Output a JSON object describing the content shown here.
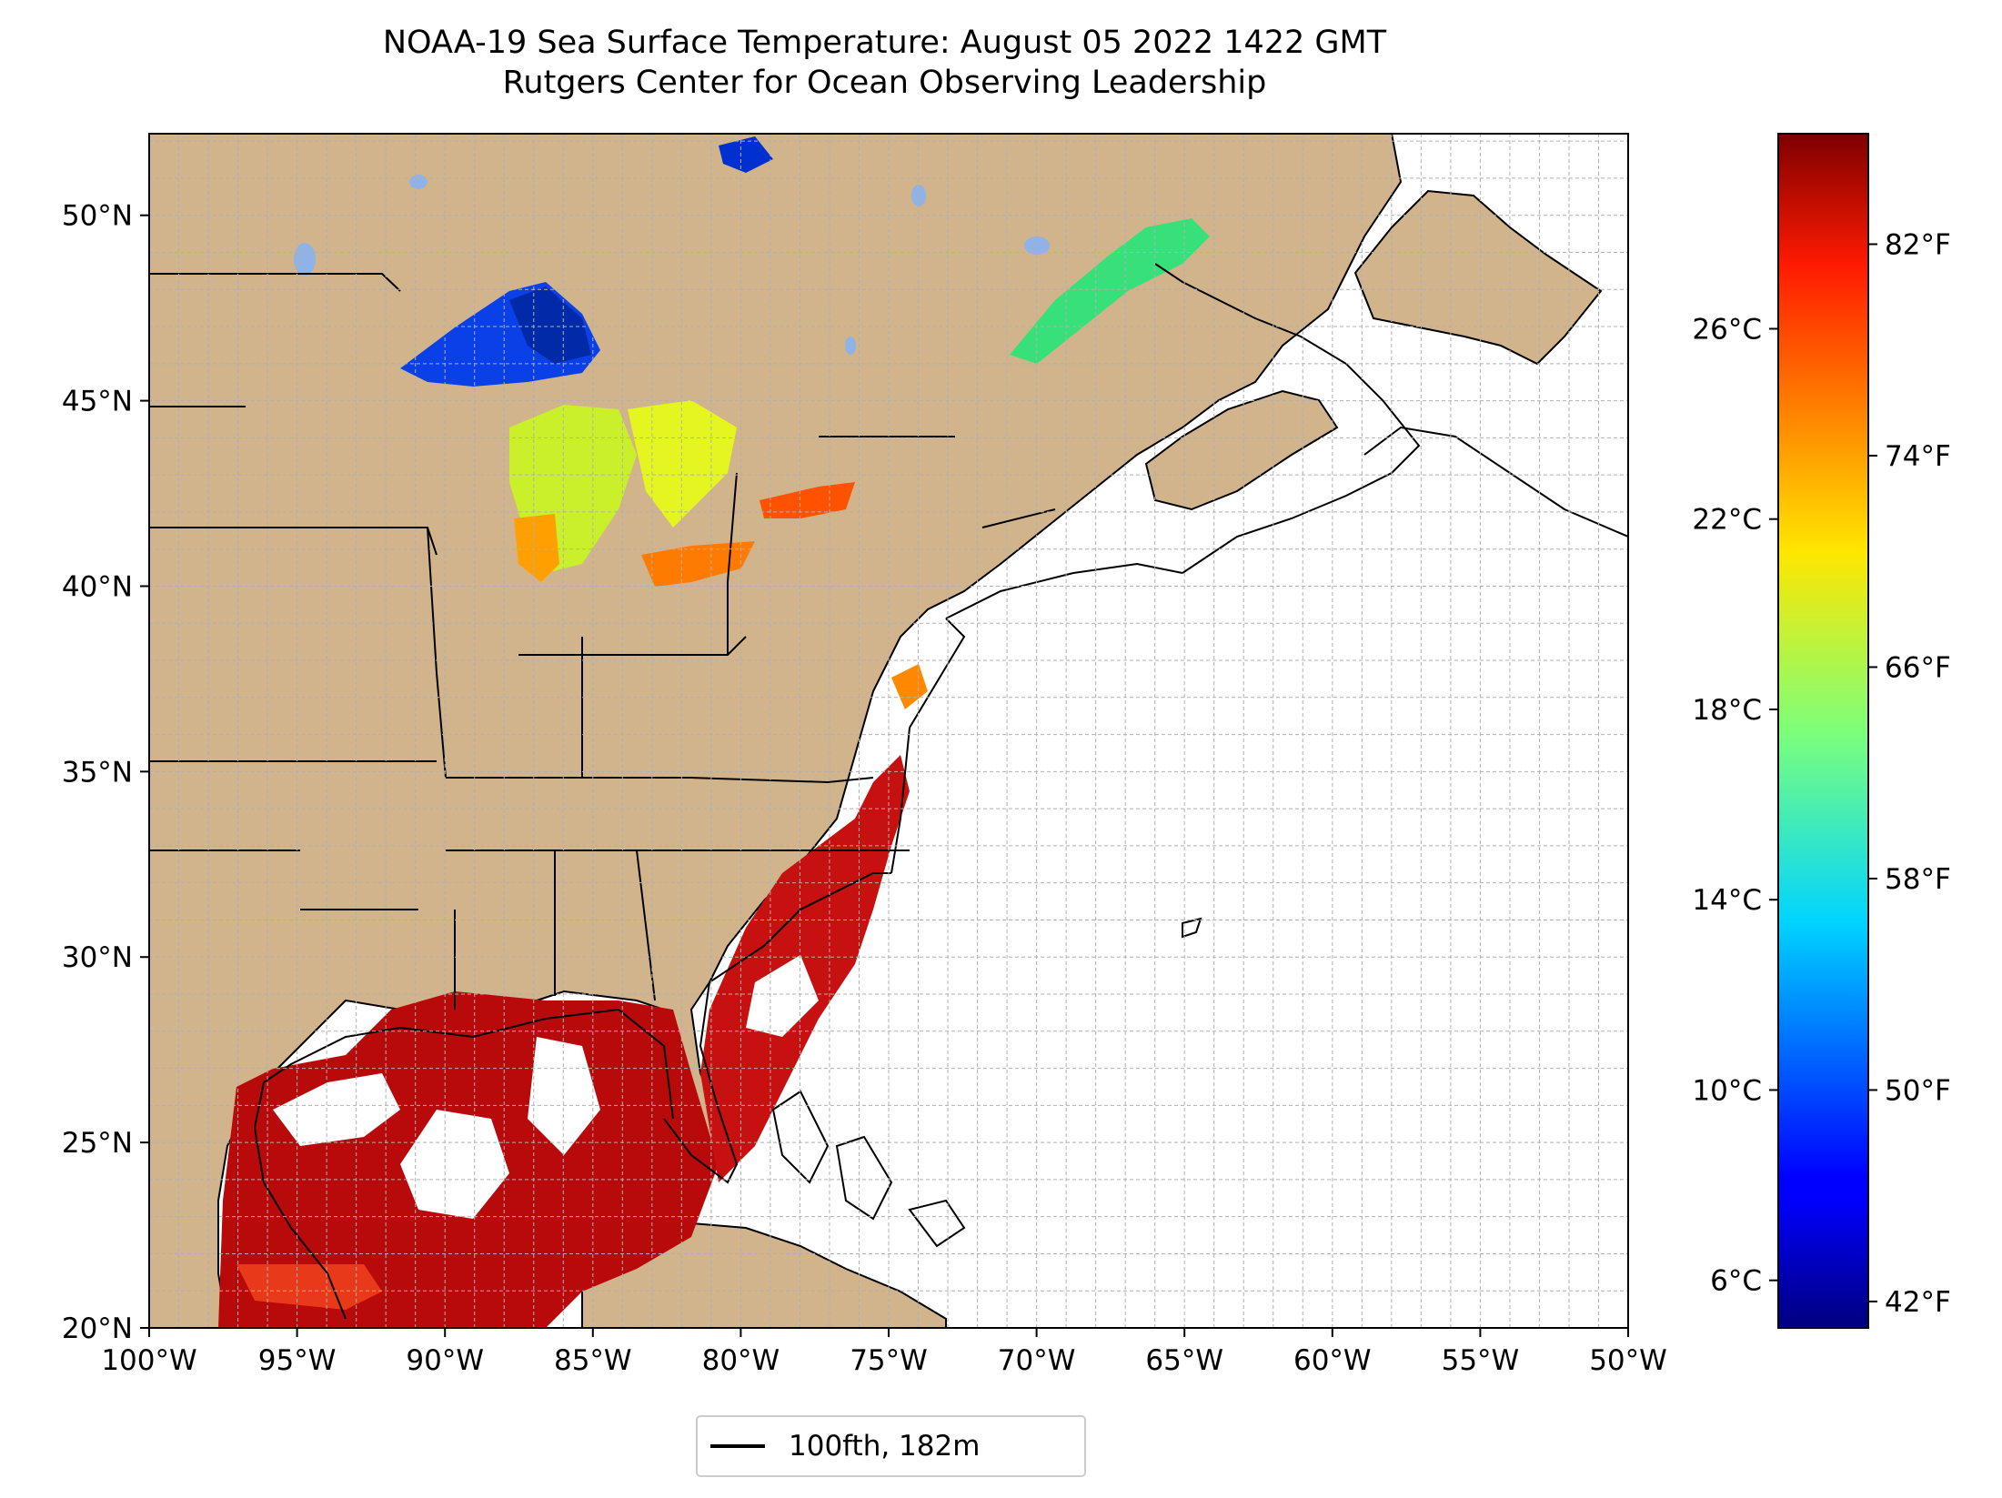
{
  "title": "NOAA-19 Sea Surface Temperature: August 05 2022 1422 GMT",
  "subtitle": "Rutgers Center for Ocean Observing Leadership",
  "map": {
    "lon_range": [
      -100,
      -50
    ],
    "lat_range": [
      20,
      52.2
    ],
    "lon_ticks": [
      "100°W",
      "95°W",
      "90°W",
      "85°W",
      "80°W",
      "75°W",
      "70°W",
      "65°W",
      "60°W",
      "55°W",
      "50°W"
    ],
    "lat_ticks": [
      "20°N",
      "25°N",
      "30°N",
      "35°N",
      "40°N",
      "45°N",
      "50°N"
    ],
    "land_color": "#d2b48c",
    "lake_color": "#8fb3e6",
    "ocean_color": "#ffffff",
    "grid": true
  },
  "colorbar": {
    "colormap": "jet",
    "celsius_range": [
      5,
      30.1
    ],
    "celsius_ticks": [
      "6°C",
      "10°C",
      "14°C",
      "18°C",
      "22°C",
      "26°C"
    ],
    "fahrenheit_ticks": [
      "42°F",
      "50°F",
      "58°F",
      "66°F",
      "74°F",
      "82°F"
    ]
  },
  "legend": {
    "label": "100fth, 182m"
  }
}
